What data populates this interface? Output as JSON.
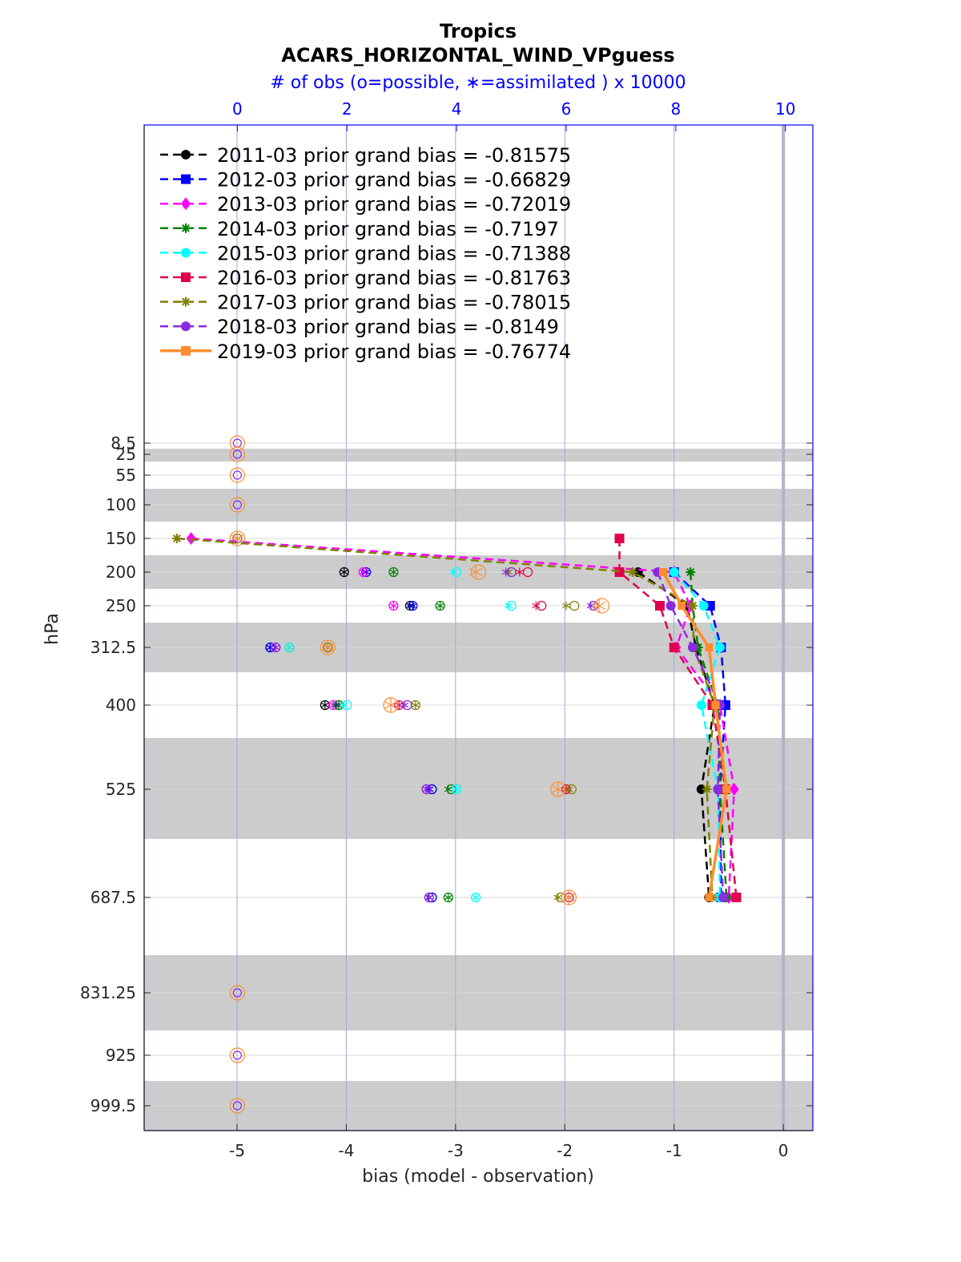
{
  "chart_data": {
    "type": "line",
    "title": "Tropics",
    "subtitle": "ACARS_HORIZONTAL_WIND_VPguess",
    "top_axis_label": "# of obs (o=possible, ∗=assimilated ) x 10000",
    "xlabel": "bias (model - observation)",
    "ylabel": "hPa",
    "xlim": [
      -5.85,
      0.27
    ],
    "top_xlim": [
      -1.7,
      10.5
    ],
    "x_ticks": [
      "-5",
      "-4",
      "-3",
      "-2",
      "-1",
      "0"
    ],
    "top_ticks": [
      "0",
      "2",
      "4",
      "6",
      "8",
      "10"
    ],
    "y_tick_labels": [
      "8.5",
      "25",
      "55",
      "100",
      "150",
      "200",
      "250",
      "312.5",
      "400",
      "525",
      "687.5",
      "831.25",
      "925",
      "999.5"
    ],
    "levels": [
      150,
      200,
      250,
      312.5,
      400,
      525,
      687.5
    ],
    "grid": true,
    "legend_position": "top-left",
    "colors": {
      "axis_blue": "#0000ff",
      "band_gray": "#cccccc",
      "grid_blue": "#a6a6d9"
    },
    "series": [
      {
        "name": "2011-03 prior grand bias = -0.81575",
        "color": "#000000",
        "marker": "circle",
        "style": "dashed",
        "values": [
          null,
          -1.33,
          -0.88,
          -0.8,
          -0.63,
          -0.75,
          -0.68
        ],
        "poss": [
          null,
          1.95,
          3.15,
          0.6,
          1.6,
          3.55,
          3.55
        ],
        "assim": [
          null,
          1.95,
          3.15,
          0.6,
          1.6,
          3.5,
          3.5
        ]
      },
      {
        "name": "2012-03 prior grand bias = -0.66829",
        "color": "#0000ff",
        "marker": "square",
        "style": "dashed",
        "values": [
          null,
          -1.0,
          -0.67,
          -0.57,
          -0.53,
          -0.58,
          -0.57
        ],
        "poss": [
          null,
          2.35,
          3.2,
          0.6,
          1.85,
          3.55,
          3.55
        ],
        "assim": [
          null,
          2.35,
          3.2,
          0.6,
          1.8,
          3.5,
          3.5
        ]
      },
      {
        "name": "2013-03 prior grand bias = -0.72019",
        "color": "#ff00ff",
        "marker": "diamond",
        "style": "dashed",
        "values": [
          -5.42,
          -1.0,
          -0.85,
          -0.98,
          -0.58,
          -0.45,
          -0.5
        ],
        "poss": [
          0,
          2.3,
          2.85,
          0.7,
          1.75,
          3.45,
          3.5
        ],
        "assim": [
          0,
          2.3,
          2.85,
          0.7,
          1.75,
          3.45,
          3.5
        ]
      },
      {
        "name": "2014-03 prior grand bias = -0.7197",
        "color": "#008000",
        "marker": "star",
        "style": "dashed",
        "values": [
          null,
          -0.85,
          -0.83,
          -0.78,
          -0.6,
          -0.58,
          -0.52
        ],
        "poss": [
          null,
          2.85,
          3.7,
          0.95,
          1.85,
          3.9,
          3.85
        ],
        "assim": [
          null,
          2.85,
          3.7,
          0.95,
          1.85,
          3.85,
          3.85
        ]
      },
      {
        "name": "2015-03 prior grand bias = -0.71388",
        "color": "#00ffff",
        "marker": "circle",
        "style": "dashed",
        "values": [
          null,
          -1.0,
          -0.73,
          -0.58,
          -0.75,
          -0.6,
          -0.58
        ],
        "poss": [
          null,
          4.0,
          5.0,
          0.95,
          2.0,
          4.0,
          4.35
        ],
        "assim": [
          null,
          3.95,
          4.95,
          0.95,
          1.95,
          4.0,
          4.35
        ]
      },
      {
        "name": "2016-03 prior grand bias = -0.81763",
        "color": "#e0004e",
        "marker": "square",
        "style": "dashed",
        "values": [
          -1.5,
          -1.5,
          -1.13,
          -1.0,
          -0.65,
          -0.53,
          -0.43
        ],
        "poss": [
          null,
          5.3,
          5.55,
          1.65,
          2.95,
          6.0,
          6.05
        ],
        "assim": [
          null,
          5.15,
          5.45,
          1.65,
          2.95,
          6.0,
          6.05
        ]
      },
      {
        "name": "2017-03 prior grand bias = -0.78015",
        "color": "#808000",
        "marker": "star",
        "style": "dashed",
        "values": [
          -5.55,
          -1.38,
          -0.83,
          -0.82,
          -0.63,
          -0.7,
          -0.65
        ],
        "poss": [
          0,
          5.0,
          6.15,
          1.65,
          3.25,
          6.1,
          5.9
        ],
        "assim": [
          0,
          4.95,
          6.0,
          1.65,
          3.25,
          6.05,
          5.85
        ]
      },
      {
        "name": "2018-03 prior grand bias = -0.8149",
        "color": "#8a2be2",
        "marker": "circle",
        "style": "dashed",
        "values": [
          null,
          -1.15,
          -1.03,
          -0.83,
          -0.58,
          -0.6,
          -0.55
        ],
        "poss": [
          null,
          5.0,
          6.5,
          0.7,
          3.1,
          3.45,
          3.5
        ],
        "assim": [
          null,
          4.9,
          6.45,
          0.7,
          3.05,
          3.45,
          3.5
        ]
      },
      {
        "name": "2019-03 prior grand bias = -0.76774",
        "color": "#ff8c2e",
        "marker": "square",
        "style": "solid",
        "values": [
          null,
          -1.1,
          -0.93,
          -0.68,
          -0.62,
          -0.52,
          -0.68
        ],
        "poss": [
          0,
          4.4,
          6.65,
          1.65,
          2.8,
          5.85,
          6.05
        ],
        "assim": [
          0,
          4.35,
          6.6,
          1.65,
          2.8,
          5.85,
          6.05
        ]
      }
    ]
  }
}
